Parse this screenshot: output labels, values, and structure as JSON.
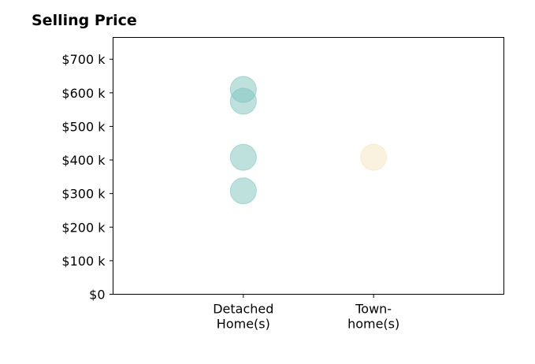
{
  "chart_data": {
    "type": "scatter",
    "title": "Selling Price",
    "xlabel": "",
    "ylabel": "",
    "categories": [
      [
        "Detached",
        "Home(s)"
      ],
      [
        "Town-",
        "home(s)"
      ]
    ],
    "y_ticks": [
      0,
      100,
      200,
      300,
      400,
      500,
      600,
      700
    ],
    "y_tick_labels": [
      "$0",
      "$100 k",
      "$200 k",
      "$300 k",
      "$400 k",
      "$500 k",
      "$600 k",
      "$700 k"
    ],
    "ylim": [
      0,
      765
    ],
    "xlim": [
      -1,
      2
    ],
    "grid": false,
    "legend": "none",
    "series": [
      {
        "category_index": 0,
        "color": "#7ec4bd",
        "values": [
          610,
          575,
          408,
          308
        ]
      },
      {
        "category_index": 1,
        "color": "#f5e3bd",
        "values": [
          408
        ]
      }
    ]
  }
}
